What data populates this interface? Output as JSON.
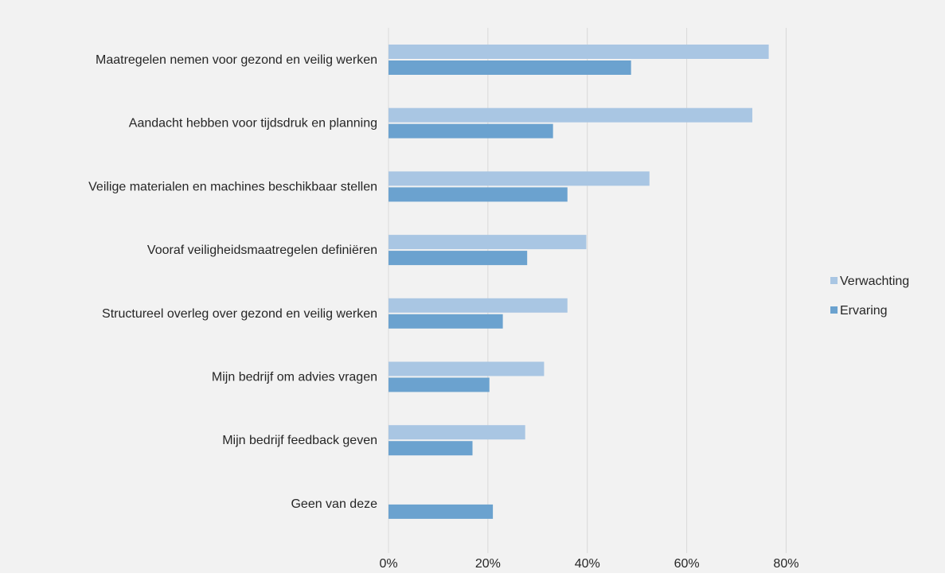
{
  "chart_data": {
    "type": "bar",
    "orientation": "horizontal",
    "categories": [
      "Maatregelen nemen voor gezond en veilig werken",
      "Aandacht hebben voor tijdsdruk en planning",
      "Veilige materialen en machines beschikbaar stellen",
      "Vooraf veiligheidsmaatregelen definiëren",
      "Structureel overleg over gezond en veilig werken",
      "Mijn bedrijf om advies vragen",
      "Mijn bedrijf feedback geven",
      "Geen van deze"
    ],
    "series": [
      {
        "name": "Verwachting",
        "color": "#a9c6e3",
        "values": [
          76.5,
          73.2,
          52.5,
          39.8,
          36.0,
          31.3,
          27.5,
          null
        ]
      },
      {
        "name": "Ervaring",
        "color": "#6ba2cf",
        "values": [
          48.8,
          33.1,
          36.0,
          27.9,
          23.0,
          20.3,
          16.9,
          21.0
        ]
      }
    ],
    "x_ticks": [
      "0%",
      "20%",
      "40%",
      "60%",
      "80%"
    ],
    "x_tick_values": [
      0,
      20,
      40,
      60,
      80
    ],
    "xlim": [
      0,
      80
    ],
    "grid": true,
    "legend_position": "right",
    "gridline_color": "#d9d9d9"
  }
}
